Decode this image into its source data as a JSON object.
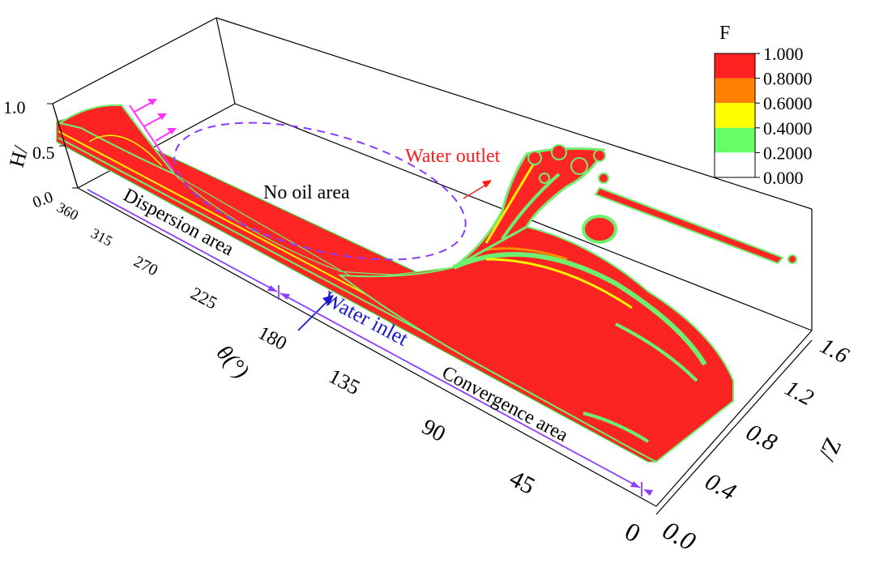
{
  "chart_data": {
    "type": "surface3d",
    "axes": {
      "theta": {
        "label": "θ(°)",
        "ticks": [
          "0",
          "45",
          "90",
          "135",
          "180",
          "225",
          "270",
          "315",
          "360"
        ],
        "range": [
          0,
          360
        ]
      },
      "z": {
        "label": "Z/",
        "ticks": [
          "0.0",
          "0.4",
          "0.8",
          "1.2",
          "1.6"
        ],
        "range": [
          0,
          1.6
        ]
      },
      "h": {
        "label": "H/",
        "ticks": [
          "0.0",
          "0.5",
          "1.0"
        ],
        "range": [
          0,
          1.0
        ]
      }
    },
    "colorbar": {
      "title": "F",
      "levels": [
        "1.000",
        "0.8000",
        "0.6000",
        "0.4000",
        "0.2000",
        "0.000"
      ],
      "colors": [
        "#ff2020",
        "#ff8000",
        "#ffff00",
        "#66ff66",
        "#ffffff"
      ]
    },
    "annotations": {
      "no_oil": "No oil area",
      "water_outlet": "Water outlet",
      "water_inlet": "Water inlet",
      "dispersion": "Dispersion area",
      "convergence": "Convergence area"
    },
    "colors": {
      "oil_red": "#ff2525",
      "green": "#6ef06e",
      "yellow": "#f5f000",
      "orange": "#ff8a00",
      "outlet_text": "#ff1a1a",
      "inlet_text": "#1a1acc",
      "region_line": "#8a3cff",
      "flow_arrows": "#ff33ff"
    }
  }
}
